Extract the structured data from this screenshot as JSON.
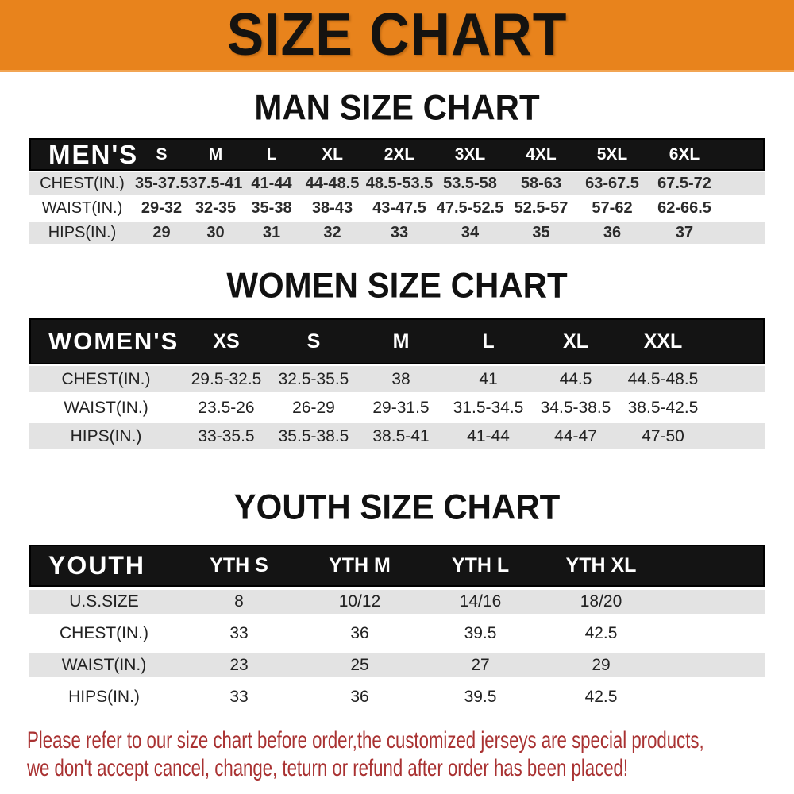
{
  "banner": {
    "title": "SIZE CHART"
  },
  "colors": {
    "banner_bg": "#E8831C",
    "header_bar": "#141414",
    "row_gray": "#E3E3E3",
    "notice_text": "#A93232",
    "heading_text": "#111111"
  },
  "sections": {
    "men": {
      "heading": "MAN SIZE CHART",
      "table": {
        "label": "MEN'S",
        "sizes": [
          "S",
          "M",
          "L",
          "XL",
          "2XL",
          "3XL",
          "4XL",
          "5XL",
          "6XL"
        ],
        "rows": [
          {
            "label": "CHEST(IN.)",
            "values": [
              "35-37.5",
              "37.5-41",
              "41-44",
              "44-48.5",
              "48.5-53.5",
              "53.5-58",
              "58-63",
              "63-67.5",
              "67.5-72"
            ]
          },
          {
            "label": "WAIST(IN.)",
            "values": [
              "29-32",
              "32-35",
              "35-38",
              "38-43",
              "43-47.5",
              "47.5-52.5",
              "52.5-57",
              "57-62",
              "62-66.5"
            ]
          },
          {
            "label": "HIPS(IN.)",
            "values": [
              "29",
              "30",
              "31",
              "32",
              "33",
              "34",
              "35",
              "36",
              "37"
            ]
          }
        ]
      }
    },
    "women": {
      "heading": "WOMEN SIZE CHART",
      "table": {
        "label": "WOMEN'S",
        "sizes": [
          "XS",
          "S",
          "M",
          "L",
          "XL",
          "XXL"
        ],
        "rows": [
          {
            "label": "CHEST(IN.)",
            "values": [
              "29.5-32.5",
              "32.5-35.5",
              "38",
              "41",
              "44.5",
              "44.5-48.5"
            ]
          },
          {
            "label": "WAIST(IN.)",
            "values": [
              "23.5-26",
              "26-29",
              "29-31.5",
              "31.5-34.5",
              "34.5-38.5",
              "38.5-42.5"
            ]
          },
          {
            "label": "HIPS(IN.)",
            "values": [
              "33-35.5",
              "35.5-38.5",
              "38.5-41",
              "41-44",
              "44-47",
              "47-50"
            ]
          }
        ]
      }
    },
    "youth": {
      "heading": "YOUTH SIZE CHART",
      "table": {
        "label": "YOUTH",
        "sizes": [
          "YTH S",
          "YTH M",
          "YTH L",
          "YTH XL"
        ],
        "rows": [
          {
            "label": "U.S.SIZE",
            "values": [
              "8",
              "10/12",
              "14/16",
              "18/20"
            ]
          },
          {
            "label": "CHEST(IN.)",
            "values": [
              "33",
              "36",
              "39.5",
              "42.5"
            ]
          },
          {
            "label": "WAIST(IN.)",
            "values": [
              "23",
              "25",
              "27",
              "29"
            ]
          },
          {
            "label": "HIPS(IN.)",
            "values": [
              "33",
              "36",
              "39.5",
              "42.5"
            ]
          }
        ]
      }
    }
  },
  "notice": {
    "line1": "Please refer to our size chart before order,the customized jerseys are special products,",
    "line2": "we don't accept cancel, change, teturn or refund after order has been placed!"
  }
}
